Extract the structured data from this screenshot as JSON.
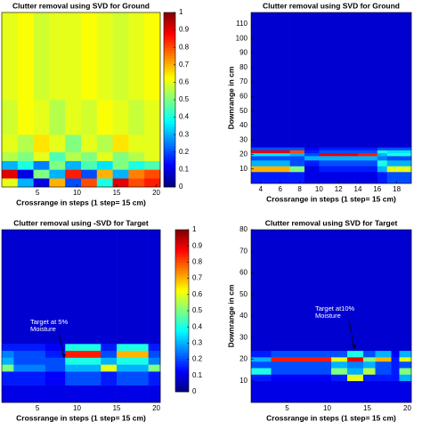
{
  "chart_data": [
    {
      "type": "heatmap",
      "title": "Clutter removal using  SVD for  Ground",
      "xlabel": "Crossrange in steps (1 step= 15 cm)",
      "xlim": [
        0.5,
        20.5
      ],
      "xticks": [
        5,
        10,
        15,
        20
      ],
      "ylim": [
        0,
        1
      ],
      "x_edges": [
        0.5,
        2.5,
        4.5,
        6.5,
        8.5,
        10.5,
        12.5,
        14.5,
        16.5,
        18.5,
        20.5
      ],
      "y_edges": [
        0,
        0.05,
        0.1,
        0.15,
        0.2,
        0.3,
        0.5,
        1
      ],
      "z": [
        [
          0.6,
          0.3,
          0.1,
          0.7,
          0.2,
          0.8,
          0.4,
          0.9,
          0.8,
          0.85
        ],
        [
          0.9,
          0.1,
          0.5,
          0.3,
          0.85,
          0.2,
          0.7,
          0.3,
          0.75,
          0.8
        ],
        [
          0.3,
          0.4,
          0.25,
          0.5,
          0.3,
          0.45,
          0.35,
          0.5,
          0.4,
          0.45
        ],
        [
          0.55,
          0.5,
          0.6,
          0.45,
          0.55,
          0.5,
          0.6,
          0.5,
          0.55,
          0.6
        ],
        [
          0.6,
          0.55,
          0.65,
          0.6,
          0.5,
          0.6,
          0.55,
          0.65,
          0.6,
          0.6
        ],
        [
          0.58,
          0.62,
          0.6,
          0.55,
          0.6,
          0.58,
          0.62,
          0.6,
          0.57,
          0.6
        ],
        [
          0.6,
          0.62,
          0.58,
          0.6,
          0.6,
          0.62,
          0.6,
          0.58,
          0.6,
          0.62
        ]
      ],
      "colormap": "jet",
      "zlim": [
        0,
        1
      ],
      "colorbar": true,
      "cticks": [
        0,
        0.1,
        0.2,
        0.3,
        0.4,
        0.5,
        0.6,
        0.7,
        0.8,
        0.9,
        1
      ]
    },
    {
      "type": "heatmap",
      "title": "Clutter removal using  SVD for  Ground",
      "xlabel": "Crossrange in steps (1 step= 15 cm)",
      "ylabel": "Downrange in cm",
      "xlim": [
        3,
        19.5
      ],
      "xticks": [
        4,
        6,
        8,
        10,
        12,
        14,
        16,
        18
      ],
      "ylim": [
        0,
        118
      ],
      "yticks": [
        10,
        20,
        30,
        40,
        50,
        60,
        70,
        80,
        90,
        100,
        110
      ],
      "x_edges": [
        3,
        5,
        7,
        8.5,
        10,
        12,
        14,
        16,
        17,
        19.5
      ],
      "y_edges": [
        0,
        8,
        12,
        16,
        19,
        21,
        23,
        25,
        118
      ],
      "z": [
        [
          0.15,
          0.15,
          0.15,
          0.1,
          0.1,
          0.1,
          0.1,
          0.15,
          0.2
        ],
        [
          0.7,
          0.7,
          0.5,
          0.1,
          0.15,
          0.15,
          0.15,
          0.3,
          0.6
        ],
        [
          0.3,
          0.3,
          0.2,
          0.15,
          0.2,
          0.2,
          0.2,
          0.4,
          0.3
        ],
        [
          0.2,
          0.2,
          0.2,
          0.3,
          0.3,
          0.3,
          0.3,
          0.25,
          0.2
        ],
        [
          0.35,
          0.35,
          0.3,
          0.2,
          0.9,
          0.9,
          0.85,
          0.3,
          0.4
        ],
        [
          0.9,
          0.9,
          0.8,
          0.15,
          0.2,
          0.2,
          0.2,
          0.4,
          0.35
        ],
        [
          0.2,
          0.2,
          0.2,
          0.12,
          0.15,
          0.15,
          0.15,
          0.2,
          0.2
        ],
        [
          0.08,
          0.08,
          0.08,
          0.08,
          0.08,
          0.08,
          0.08,
          0.08,
          0.08
        ]
      ],
      "colormap": "jet",
      "zlim": [
        0,
        1
      ],
      "colorbar": false
    },
    {
      "type": "heatmap",
      "title": "Clutter removal using -SVD for  Target",
      "xlabel": "Crossrange in steps (1 step= 15 cm)",
      "xlim": [
        0.5,
        20.5
      ],
      "xticks": [
        5,
        10,
        15,
        20
      ],
      "ylim": [
        0,
        1
      ],
      "x_edges": [
        0.5,
        2,
        6,
        8.5,
        13,
        15,
        19,
        20.5
      ],
      "y_edges": [
        0,
        0.1,
        0.18,
        0.22,
        0.26,
        0.3,
        0.34,
        1
      ],
      "z": [
        [
          0.1,
          0.1,
          0.1,
          0.1,
          0.1,
          0.1,
          0.1
        ],
        [
          0.15,
          0.15,
          0.12,
          0.2,
          0.15,
          0.2,
          0.15
        ],
        [
          0.5,
          0.25,
          0.2,
          0.3,
          0.6,
          0.3,
          0.5
        ],
        [
          0.3,
          0.2,
          0.2,
          0.4,
          0.3,
          0.4,
          0.25
        ],
        [
          0.25,
          0.2,
          0.15,
          0.85,
          0.2,
          0.7,
          0.2
        ],
        [
          0.15,
          0.15,
          0.12,
          0.4,
          0.15,
          0.4,
          0.15
        ],
        [
          0.08,
          0.08,
          0.08,
          0.08,
          0.08,
          0.08,
          0.08
        ]
      ],
      "colormap": "jet",
      "zlim": [
        0,
        1
      ],
      "colorbar": true,
      "cticks": [
        0,
        0.1,
        0.2,
        0.3,
        0.4,
        0.5,
        0.6,
        0.7,
        0.8,
        0.9,
        1
      ],
      "annotation": [
        "Target at 5%",
        "Moisture"
      ]
    },
    {
      "type": "heatmap",
      "title": "Clutter removal using  SVD for  Target",
      "xlabel": "Crossrange in steps (1 step= 15 cm)",
      "ylabel": "Downrange in cm",
      "xlim": [
        0.5,
        20.5
      ],
      "xticks": [
        5,
        10,
        15,
        20
      ],
      "ylim": [
        0,
        80
      ],
      "yticks": [
        10,
        20,
        30,
        40,
        50,
        60,
        70,
        80
      ],
      "x_edges": [
        0.5,
        3,
        10.5,
        12.5,
        14.5,
        16,
        18,
        19,
        20.5
      ],
      "y_edges": [
        0,
        10,
        13,
        16,
        19,
        21,
        24,
        80
      ],
      "z": [
        [
          0.1,
          0.1,
          0.1,
          0.1,
          0.1,
          0.1,
          0.1,
          0.1
        ],
        [
          0.15,
          0.12,
          0.15,
          0.6,
          0.15,
          0.15,
          0.15,
          0.3
        ],
        [
          0.4,
          0.2,
          0.5,
          0.3,
          0.55,
          0.2,
          0.15,
          0.5
        ],
        [
          0.2,
          0.2,
          0.3,
          0.25,
          0.3,
          0.2,
          0.15,
          0.2
        ],
        [
          0.3,
          0.85,
          0.6,
          0.9,
          0.5,
          0.7,
          0.15,
          0.6
        ],
        [
          0.15,
          0.2,
          0.2,
          0.4,
          0.2,
          0.3,
          0.12,
          0.3
        ],
        [
          0.08,
          0.08,
          0.08,
          0.08,
          0.08,
          0.08,
          0.08,
          0.08
        ]
      ],
      "colormap": "jet",
      "zlim": [
        0,
        1
      ],
      "colorbar": false,
      "annotation": [
        "Target at10%",
        "Moisture"
      ]
    }
  ]
}
